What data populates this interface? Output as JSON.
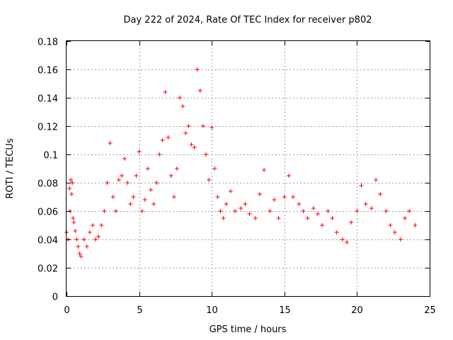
{
  "chart_data": {
    "type": "scatter",
    "title": "Day 222 of 2024, Rate Of TEC Index for receiver p802",
    "xlabel": "GPS time / hours",
    "ylabel": "ROTI / TECUs",
    "xlim": [
      0,
      25
    ],
    "ylim": [
      0,
      0.18
    ],
    "x_ticks": [
      0,
      5,
      10,
      15,
      20,
      25
    ],
    "x_tick_labels": [
      "0",
      "5",
      "10",
      "15",
      "20",
      "25"
    ],
    "y_ticks": [
      0,
      0.02,
      0.04,
      0.06,
      0.08,
      0.1,
      0.12,
      0.14,
      0.16,
      0.18
    ],
    "y_tick_labels": [
      "0",
      "0.02",
      "0.04",
      "0.06",
      "0.08",
      "0.1",
      "0.12",
      "0.14",
      "0.16",
      "0.18"
    ],
    "grid": true,
    "marker": "plus",
    "color": "#ff0000",
    "series": [
      {
        "x": [
          0.0,
          0.1,
          0.2,
          0.25,
          0.3,
          0.35,
          0.4,
          0.45,
          0.5,
          0.6,
          0.7,
          0.8,
          0.9,
          1.0,
          1.2,
          1.4,
          1.6,
          1.8,
          2.0,
          2.2,
          2.4,
          2.6,
          2.8,
          3.0,
          3.2,
          3.4,
          3.6,
          3.8,
          4.0,
          4.2,
          4.4,
          4.6,
          4.8,
          5.0,
          5.2,
          5.4,
          5.6,
          5.8,
          6.0,
          6.2,
          6.4,
          6.6,
          6.8,
          7.0,
          7.2,
          7.4,
          7.6,
          7.8,
          8.0,
          8.2,
          8.4,
          8.6,
          8.8,
          9.0,
          9.2,
          9.4,
          9.6,
          9.8,
          10.0,
          10.2,
          10.4,
          10.6,
          10.8,
          11.0,
          11.3,
          11.6,
          12.0,
          12.3,
          12.6,
          13.0,
          13.3,
          13.6,
          14.0,
          14.3,
          14.6,
          15.0,
          15.3,
          15.6,
          16.0,
          16.3,
          16.6,
          17.0,
          17.3,
          17.6,
          18.0,
          18.3,
          18.6,
          19.0,
          19.3,
          19.6,
          20.0,
          20.3,
          20.6,
          21.0,
          21.3,
          21.6,
          22.0,
          22.3,
          22.6,
          23.0,
          23.3,
          23.6,
          24.0
        ],
        "y": [
          0.045,
          0.04,
          0.076,
          0.06,
          0.082,
          0.072,
          0.08,
          0.055,
          0.052,
          0.046,
          0.04,
          0.035,
          0.03,
          0.028,
          0.04,
          0.035,
          0.045,
          0.05,
          0.04,
          0.042,
          0.05,
          0.06,
          0.08,
          0.108,
          0.07,
          0.06,
          0.082,
          0.085,
          0.097,
          0.08,
          0.065,
          0.07,
          0.085,
          0.102,
          0.06,
          0.068,
          0.09,
          0.075,
          0.065,
          0.08,
          0.1,
          0.11,
          0.144,
          0.112,
          0.085,
          0.07,
          0.09,
          0.14,
          0.134,
          0.115,
          0.12,
          0.107,
          0.105,
          0.16,
          0.145,
          0.12,
          0.1,
          0.082,
          0.119,
          0.09,
          0.07,
          0.06,
          0.055,
          0.065,
          0.074,
          0.06,
          0.062,
          0.065,
          0.058,
          0.055,
          0.072,
          0.089,
          0.06,
          0.068,
          0.055,
          0.07,
          0.085,
          0.07,
          0.065,
          0.06,
          0.055,
          0.062,
          0.058,
          0.05,
          0.06,
          0.055,
          0.045,
          0.04,
          0.038,
          0.052,
          0.06,
          0.078,
          0.065,
          0.062,
          0.082,
          0.072,
          0.06,
          0.05,
          0.045,
          0.04,
          0.055,
          0.06,
          0.05
        ]
      }
    ]
  }
}
